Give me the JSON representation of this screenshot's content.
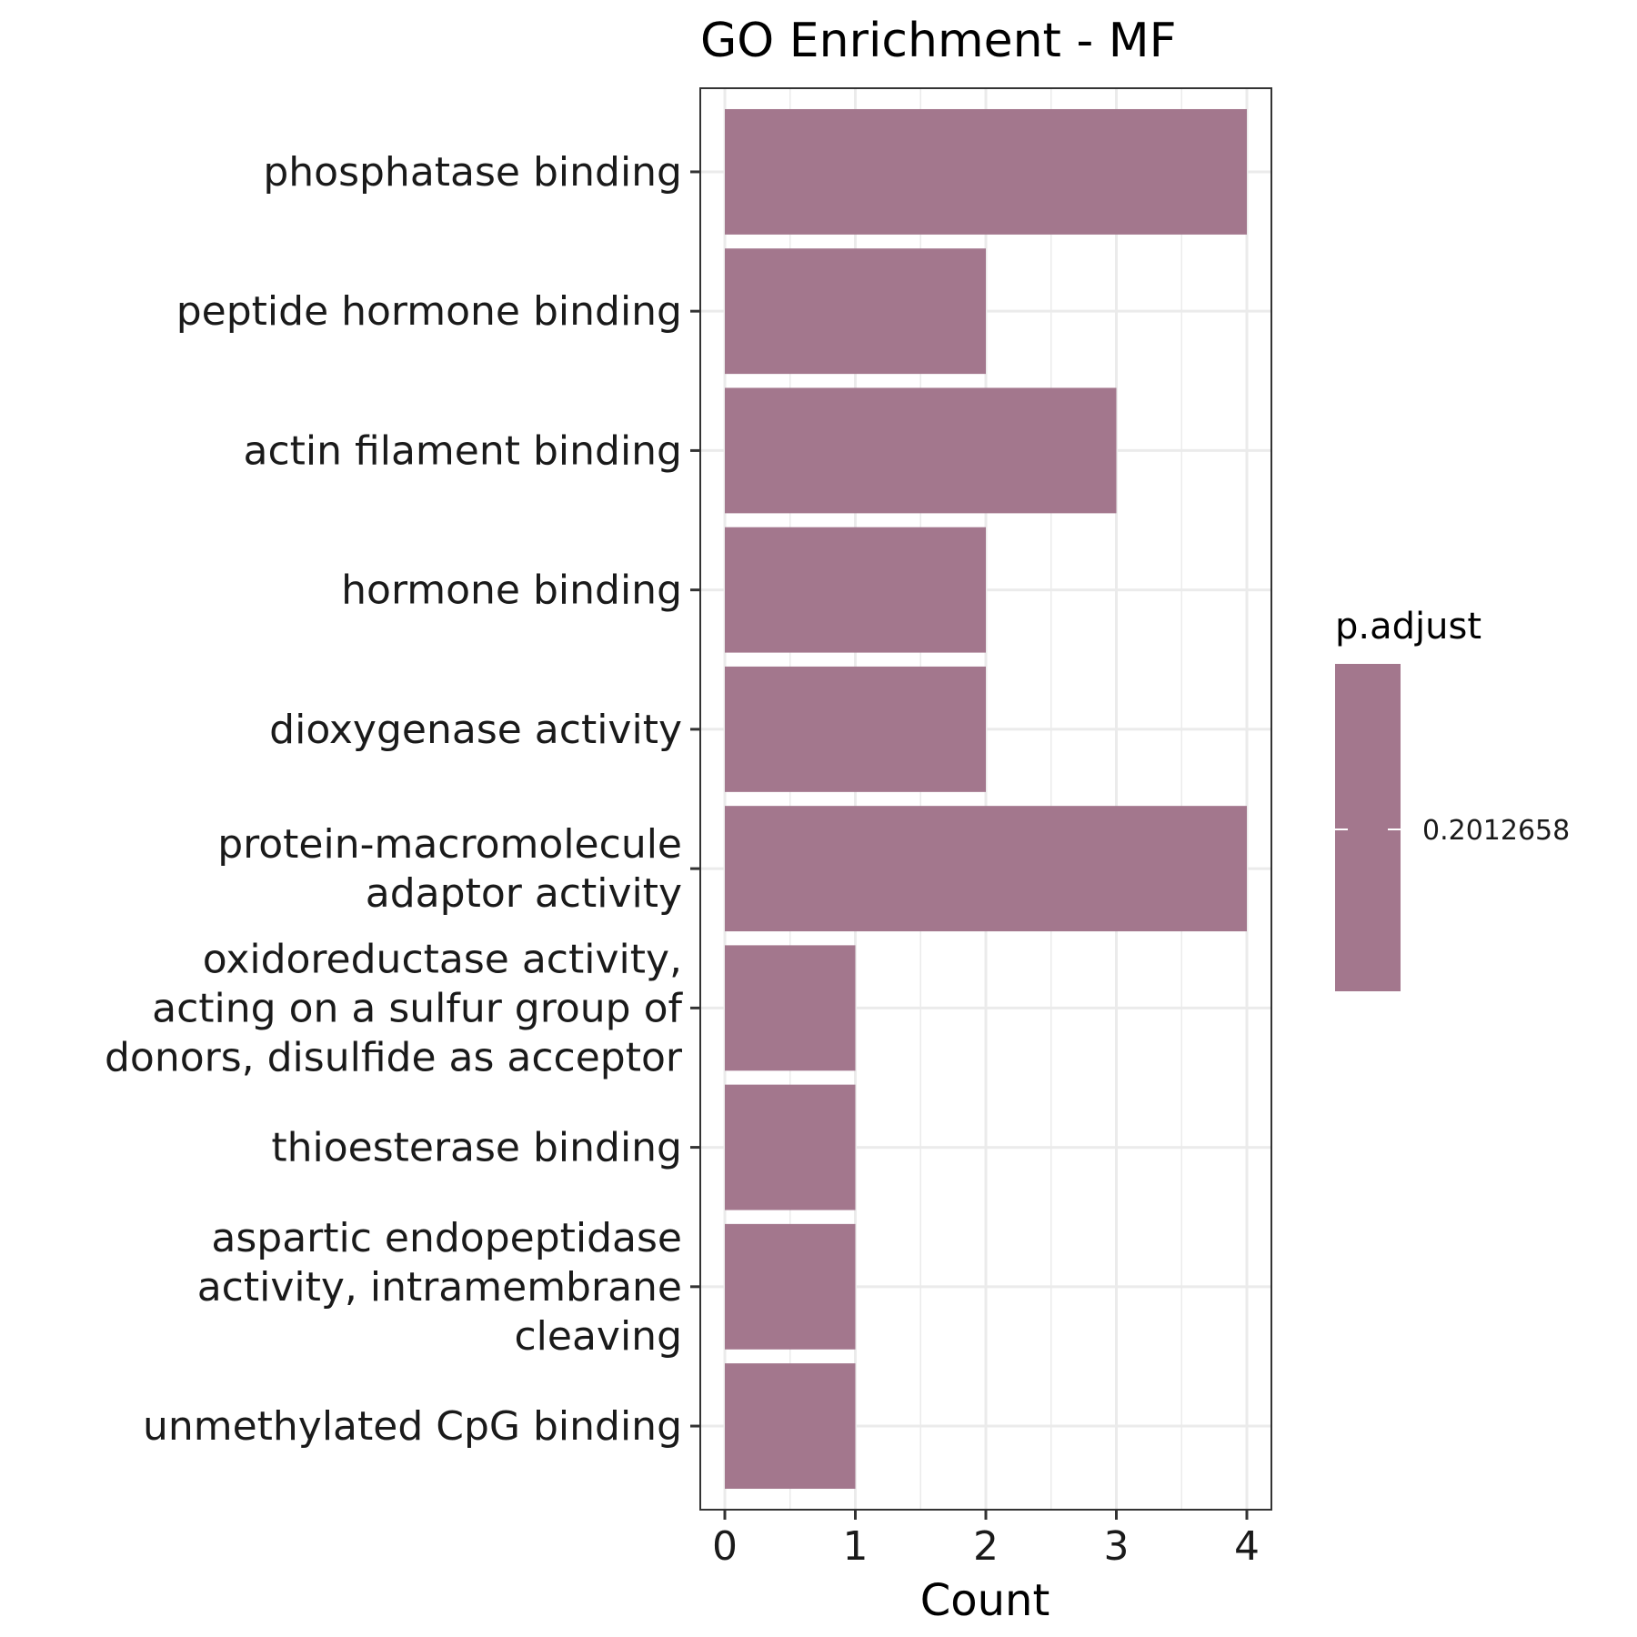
{
  "chart_data": {
    "type": "bar",
    "orientation": "horizontal",
    "title": "GO Enrichment - MF",
    "xlabel": "Count",
    "ylabel": "",
    "xlim": [
      0,
      4.2
    ],
    "xticks": [
      0,
      1,
      2,
      3,
      4
    ],
    "grid": true,
    "categories": [
      "phosphatase binding",
      "peptide hormone binding",
      "actin filament binding",
      "hormone binding",
      "dioxygenase activity",
      "protein-macromolecule adaptor activity",
      "oxidoreductase activity, acting on a sulfur group of donors, disulfide as acceptor",
      "thioesterase binding",
      "aspartic endopeptidase activity, intramembrane cleaving",
      "unmethylated CpG binding"
    ],
    "category_lines": [
      [
        "phosphatase binding"
      ],
      [
        "peptide hormone binding"
      ],
      [
        "actin filament binding"
      ],
      [
        "hormone binding"
      ],
      [
        "dioxygenase activity"
      ],
      [
        "protein-macromolecule",
        "adaptor activity"
      ],
      [
        "oxidoreductase activity,",
        "acting on a sulfur group of",
        "donors, disulfide as acceptor"
      ],
      [
        "thioesterase binding"
      ],
      [
        "aspartic endopeptidase",
        "activity, intramembrane",
        "cleaving"
      ],
      [
        "unmethylated CpG binding"
      ]
    ],
    "values": [
      4,
      2,
      3,
      2,
      2,
      4,
      1,
      1,
      1,
      1
    ],
    "bar_color": "#a3778d",
    "legend": {
      "title": "p.adjust",
      "position": "right",
      "color": "#a3778d",
      "labels": [
        "0.2012658"
      ]
    }
  }
}
